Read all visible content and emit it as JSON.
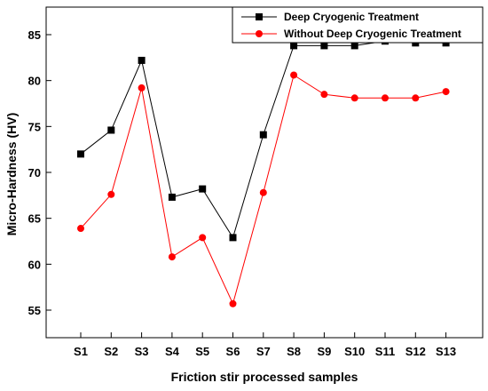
{
  "chart_data": {
    "type": "line",
    "title": "",
    "xlabel": "Friction stir processed samples",
    "ylabel": "Micro-Hardness (HV)",
    "categories": [
      "S1",
      "S2",
      "S3",
      "S4",
      "S5",
      "S6",
      "S7",
      "S8",
      "S9",
      "S10",
      "S11",
      "S12",
      "S13"
    ],
    "ylim": [
      52,
      88
    ],
    "yticks": [
      55,
      60,
      65,
      70,
      75,
      80,
      85
    ],
    "grid": false,
    "legend_position": "top-right",
    "series": [
      {
        "name": "Deep Cryogenic Treatment",
        "color": "#000000",
        "marker": "square",
        "values": [
          72.0,
          74.6,
          82.2,
          67.3,
          68.2,
          62.9,
          74.1,
          83.8,
          83.8,
          83.8,
          84.3,
          84.1,
          84.1
        ]
      },
      {
        "name": "Without Deep Cryogenic Treatment",
        "color": "#ff0000",
        "marker": "circle",
        "values": [
          63.9,
          67.6,
          79.2,
          60.8,
          62.9,
          55.7,
          67.8,
          80.6,
          78.5,
          78.1,
          78.1,
          78.1,
          78.8
        ]
      }
    ]
  }
}
